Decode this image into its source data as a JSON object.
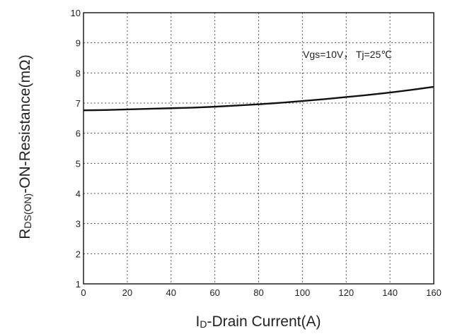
{
  "chart_data": {
    "type": "line",
    "title": "",
    "xlabel_main": "I",
    "xlabel_sub": "D",
    "xlabel_rest": "-Drain Current(A)",
    "ylabel_main": "R",
    "ylabel_sub": "DS(ON)",
    "ylabel_rest": "-ON-Resistance(mΩ)",
    "annotation": "Vgs=10V， Tj=25℃",
    "xlim": [
      0,
      160
    ],
    "ylim": [
      1,
      10
    ],
    "xticks": [
      0,
      20,
      40,
      60,
      80,
      100,
      120,
      140,
      160
    ],
    "yticks": [
      1,
      2,
      3,
      4,
      5,
      6,
      7,
      8,
      9,
      10
    ],
    "grid": true,
    "series": [
      {
        "x": [
          0,
          10,
          20,
          30,
          40,
          50,
          60,
          70,
          80,
          90,
          100,
          110,
          120,
          130,
          140,
          150,
          160
        ],
        "y": [
          6.76,
          6.77,
          6.79,
          6.81,
          6.83,
          6.85,
          6.88,
          6.92,
          6.96,
          7.01,
          7.07,
          7.13,
          7.2,
          7.27,
          7.35,
          7.44,
          7.54
        ]
      }
    ]
  }
}
